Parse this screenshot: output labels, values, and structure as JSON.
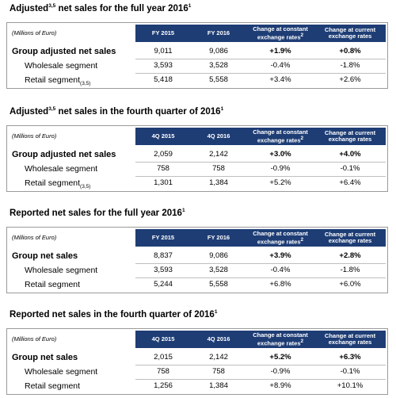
{
  "sections": [
    {
      "title": [
        "Adjusted",
        "3,5",
        " net sales for the full year 2016",
        "1"
      ],
      "header": [
        [
          "(Millions of Euro)"
        ],
        [
          "FY 2015"
        ],
        [
          "FY 2016"
        ],
        [
          "Change at constant exchange rates",
          "2"
        ],
        [
          "Change at current exchange rates"
        ]
      ],
      "rows": [
        {
          "label": [
            "Group adjusted net sales"
          ],
          "cells": [
            "9,011",
            "9,086",
            "+1.9%",
            "+0.8%"
          ]
        },
        {
          "label": [
            "Wholesale segment"
          ],
          "cells": [
            "3,593",
            "3,528",
            "-0.4%",
            "-1.8%"
          ]
        },
        {
          "label": [
            "Retail segment",
            "(3,5)"
          ],
          "cells": [
            "5,418",
            "5,558",
            "+3.4%",
            "+2.6%"
          ]
        }
      ]
    },
    {
      "title": [
        "Adjusted",
        "3,5",
        " net sales in the fourth quarter of 2016",
        "1"
      ],
      "header": [
        [
          "(Millions of Euro)"
        ],
        [
          "4Q 2015"
        ],
        [
          "4Q 2016"
        ],
        [
          "Change at constant exchange rates",
          "2"
        ],
        [
          "Change at current exchange rates"
        ]
      ],
      "rows": [
        {
          "label": [
            "Group adjusted net sales"
          ],
          "cells": [
            "2,059",
            "2,142",
            "+3.0%",
            "+4.0%"
          ]
        },
        {
          "label": [
            "Wholesale segment"
          ],
          "cells": [
            "758",
            "758",
            "-0.9%",
            "-0.1%"
          ]
        },
        {
          "label": [
            "Retail segment",
            "(3,5)"
          ],
          "cells": [
            "1,301",
            "1,384",
            "+5.2%",
            "+6.4%"
          ]
        }
      ]
    },
    {
      "title": [
        "Reported net sales for the full year 2016",
        "1"
      ],
      "header": [
        [
          "(Millions of Euro)"
        ],
        [
          "FY 2015"
        ],
        [
          "FY 2016"
        ],
        [
          "Change at constant exchange rates",
          "2"
        ],
        [
          "Change at current exchange rates"
        ]
      ],
      "rows": [
        {
          "label": [
            "Group net sales"
          ],
          "cells": [
            "8,837",
            "9,086",
            "+3.9%",
            "+2.8%"
          ]
        },
        {
          "label": [
            "Wholesale segment"
          ],
          "cells": [
            "3,593",
            "3,528",
            "-0.4%",
            "-1.8%"
          ]
        },
        {
          "label": [
            "Retail segment"
          ],
          "cells": [
            "5,244",
            "5,558",
            "+6.8%",
            "+6.0%"
          ]
        }
      ]
    },
    {
      "title": [
        "Reported net sales in the fourth quarter of 2016",
        "1"
      ],
      "header": [
        [
          "(Millions of Euro)"
        ],
        [
          "4Q 2015"
        ],
        [
          "4Q 2016"
        ],
        [
          "Change at constant exchange rates",
          "2"
        ],
        [
          "Change at current exchange rates"
        ]
      ],
      "rows": [
        {
          "label": [
            "Group net sales"
          ],
          "cells": [
            "2,015",
            "2,142",
            "+5.2%",
            "+6.3%"
          ]
        },
        {
          "label": [
            "Wholesale segment"
          ],
          "cells": [
            "758",
            "758",
            "-0.9%",
            "-0.1%"
          ]
        },
        {
          "label": [
            "Retail segment"
          ],
          "cells": [
            "1,256",
            "1,384",
            "+8.9%",
            "+10.1%"
          ]
        }
      ]
    }
  ]
}
